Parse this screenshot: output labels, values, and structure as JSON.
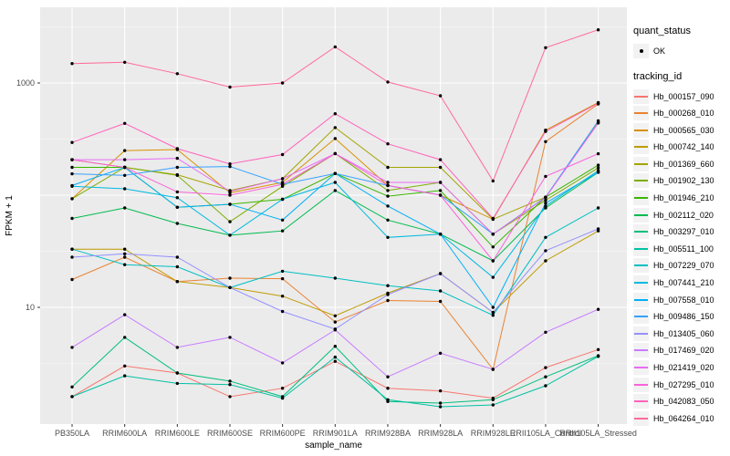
{
  "legend": {
    "quant_status_title": "quant_status",
    "ok_label": "OK",
    "tracking_id_title": "tracking_id"
  },
  "colors": {
    "panel_bg": "#ebebeb",
    "grid_major": "#ffffff",
    "grid_minor": "#ffffff",
    "legend_key_bg": "#f2f2f2",
    "axis_text": "#4d4d4d",
    "axis_title": "#000000",
    "point": "#000000",
    "tick": "#333333"
  },
  "chart_data": {
    "type": "line",
    "title": "",
    "xlabel": "sample_name",
    "ylabel": "FPKM + 1",
    "y_scale": "log10",
    "ylim": [
      1,
      4700
    ],
    "y_tick_values": [
      10,
      1000
    ],
    "y_tick_labels": [
      "10",
      "1000"
    ],
    "grid": "white major+minor on grey panel",
    "legend_position": "right",
    "quant_status": "OK",
    "x_categories": [
      "PB350LA",
      "RRIM600LA",
      "RRIM600LE",
      "RRIM600SE",
      "RRIM600PE",
      "RRIM901LA",
      "RRIM928BA",
      "RRIM928LA",
      "RRIM928LE",
      "RRII105LA_Control",
      "RRII105LA_Stressed"
    ],
    "series": [
      {
        "name": "Hb_000157_090",
        "color": "#F8766D",
        "values": [
          1.6,
          3.0,
          2.6,
          1.6,
          1.9,
          3.3,
          1.9,
          1.8,
          1.55,
          2.9,
          4.2
        ]
      },
      {
        "name": "Hb_000268_010",
        "color": "#EA8331",
        "values": [
          17.7,
          28,
          17,
          18.2,
          18,
          7.4,
          11.5,
          11.3,
          2.8,
          300,
          650
        ]
      },
      {
        "name": "Hb_000565_030",
        "color": "#D89000",
        "values": [
          93,
          250,
          255,
          105,
          130,
          320,
          122,
          100,
          61,
          380,
          670
        ]
      },
      {
        "name": "Hb_000742_140",
        "color": "#C09B00",
        "values": [
          33,
          33,
          17,
          15,
          12.6,
          8.4,
          13.4,
          20,
          9,
          26,
          48
        ]
      },
      {
        "name": "Hb_001369_660",
        "color": "#A3A500",
        "values": [
          207,
          177,
          152,
          110,
          140,
          400,
          177,
          177,
          61,
          96,
          450
        ]
      },
      {
        "name": "Hb_001902_130",
        "color": "#7CAE00",
        "values": [
          93,
          177,
          150,
          58,
          120,
          235,
          110,
          130,
          45,
          90,
          175
        ]
      },
      {
        "name": "Hb_001946_210",
        "color": "#39B600",
        "values": [
          177,
          177,
          78,
          83,
          92,
          156,
          98,
          110,
          34.5,
          96,
          185
        ]
      },
      {
        "name": "Hb_002112_020",
        "color": "#00BB4E",
        "values": [
          62,
          77,
          56,
          44,
          48,
          110,
          60,
          45,
          26,
          77,
          160
        ]
      },
      {
        "name": "Hb_003297_010",
        "color": "#00BF7D",
        "values": [
          1.95,
          5.4,
          2.6,
          2.2,
          1.6,
          4.5,
          1.45,
          1.4,
          1.5,
          2.4,
          3.7
        ]
      },
      {
        "name": "Hb_005511_100",
        "color": "#00C1A3",
        "values": [
          1.6,
          2.45,
          2.1,
          2.05,
          1.55,
          3.6,
          1.5,
          1.3,
          1.35,
          2.0,
          3.65
        ]
      },
      {
        "name": "Hb_007229_070",
        "color": "#00BFC4",
        "values": [
          33,
          24,
          23,
          15,
          21,
          18.2,
          15.6,
          14,
          8.5,
          42,
          77
        ]
      },
      {
        "name": "Hb_007441_210",
        "color": "#00BAE0",
        "values": [
          120,
          114,
          95,
          44,
          92,
          130,
          42,
          45,
          18.5,
          80,
          165
        ]
      },
      {
        "name": "Hb_007558_010",
        "color": "#00B0F6",
        "values": [
          122,
          177,
          78,
          83,
          60,
          156,
          80,
          45,
          10,
          85,
          160
        ]
      },
      {
        "name": "Hb_009486_150",
        "color": "#35A2FF",
        "values": [
          155,
          150,
          177,
          180,
          125,
          156,
          122,
          100,
          45,
          96,
          460
        ]
      },
      {
        "name": "Hb_013405_060",
        "color": "#9590FF",
        "values": [
          28,
          30,
          28,
          15,
          9.2,
          6.4,
          13,
          20,
          9,
          32,
          50
        ]
      },
      {
        "name": "Hb_017469_020",
        "color": "#C77CFF",
        "values": [
          4.4,
          8.6,
          4.4,
          5.4,
          3.2,
          6.3,
          2.4,
          3.9,
          2.8,
          6.0,
          9.6
        ]
      },
      {
        "name": "Hb_021419_020",
        "color": "#E76BF3",
        "values": [
          207,
          207,
          213,
          108,
          140,
          235,
          130,
          130,
          45,
          95,
          440
        ]
      },
      {
        "name": "Hb_027295_010",
        "color": "#FA62DB",
        "values": [
          207,
          177,
          107,
          100,
          125,
          235,
          122,
          100,
          26,
          147,
          234
        ]
      },
      {
        "name": "Hb_042083_050",
        "color": "#FF62BC",
        "values": [
          295,
          436,
          260,
          190,
          230,
          532,
          287,
          207,
          62,
          370,
          660
        ]
      },
      {
        "name": "Hb_064264_010",
        "color": "#FF6A98",
        "values": [
          1490,
          1530,
          1210,
          920,
          1000,
          2100,
          1020,
          770,
          134,
          2065,
          2980
        ]
      }
    ]
  }
}
